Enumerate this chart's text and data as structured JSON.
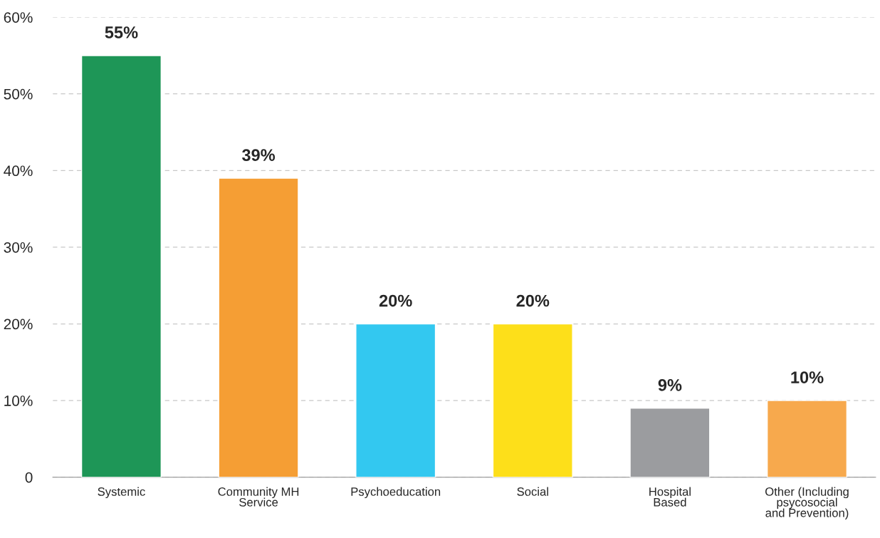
{
  "chart_data": {
    "type": "bar",
    "categories": [
      "Systemic",
      "Community MH\nService",
      "Psychoeducation",
      "Social",
      "Hospital\nBased",
      "Other (Including\npsycosocial\nand Prevention)"
    ],
    "values": [
      55,
      39,
      20,
      20,
      9,
      10
    ],
    "colors": [
      "#1e9657",
      "#f59e34",
      "#33c8f0",
      "#fddf1a",
      "#9b9c9f",
      "#f7a94d"
    ],
    "ylim": [
      0,
      60
    ],
    "yticks": [
      0,
      {
        "value": 10,
        "label": "10%"
      },
      {
        "value": 20,
        "label": "20%"
      },
      {
        "value": 30,
        "label": "30%"
      },
      {
        "value": 40,
        "label": "40%"
      },
      {
        "value": 50,
        "label": "50%"
      },
      {
        "value": 60,
        "label": "60%"
      }
    ],
    "grid": "y",
    "data_labels": true,
    "value_labels": [
      "55%",
      "39%",
      "20%",
      "20%",
      "9%",
      "10%"
    ]
  }
}
